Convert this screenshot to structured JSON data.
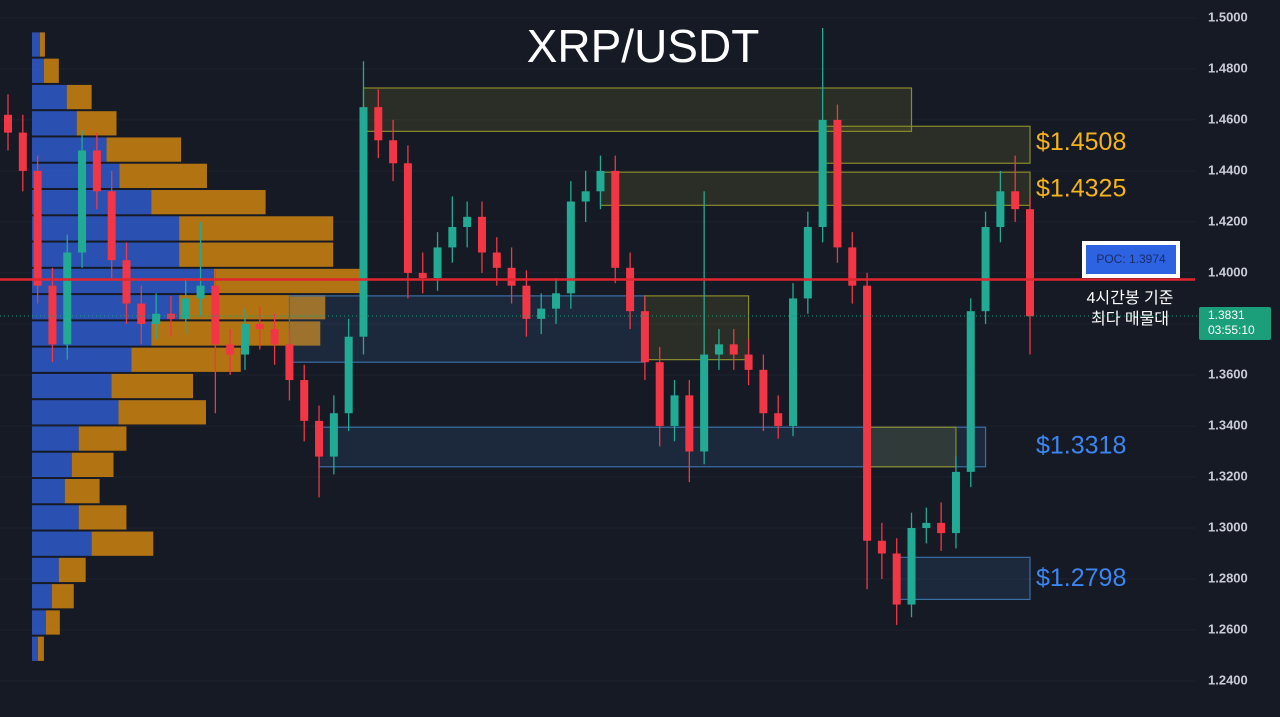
{
  "chart_data": {
    "type": "candlestick",
    "title": "XRP/USDT",
    "ylim": [
      1.2259,
      1.507
    ],
    "yticks": [
      {
        "value": 1.24,
        "label": "1.2400"
      },
      {
        "value": 1.26,
        "label": "1.2600"
      },
      {
        "value": 1.28,
        "label": "1.2800"
      },
      {
        "value": 1.3,
        "label": "1.3000"
      },
      {
        "value": 1.32,
        "label": "1.3200"
      },
      {
        "value": 1.34,
        "label": "1.3400"
      },
      {
        "value": 1.36,
        "label": "1.3600"
      },
      {
        "value": 1.38,
        "label": "1.3800"
      },
      {
        "value": 1.4,
        "label": "1.4000"
      },
      {
        "value": 1.42,
        "label": "1.4200"
      },
      {
        "value": 1.44,
        "label": "1.4400"
      },
      {
        "value": 1.46,
        "label": "1.4600"
      },
      {
        "value": 1.48,
        "label": "1.4800"
      },
      {
        "value": 1.5,
        "label": "1.5000"
      }
    ],
    "grid": true,
    "up_color": "#22ab94",
    "down_color": "#f23645",
    "candles": {
      "open": [
        1.462,
        1.455,
        1.44,
        1.395,
        1.372,
        1.408,
        1.448,
        1.432,
        1.405,
        1.388,
        1.38,
        1.384,
        1.382,
        1.39,
        1.395,
        1.372,
        1.368,
        1.38,
        1.378,
        1.372,
        1.358,
        1.342,
        1.328,
        1.345,
        1.375,
        1.465,
        1.452,
        1.443,
        1.4,
        1.398,
        1.41,
        1.418,
        1.422,
        1.408,
        1.402,
        1.395,
        1.382,
        1.386,
        1.392,
        1.428,
        1.432,
        1.44,
        1.402,
        1.385,
        1.365,
        1.34,
        1.352,
        1.33,
        1.368,
        1.372,
        1.368,
        1.362,
        1.345,
        1.34,
        1.39,
        1.418,
        1.46,
        1.41,
        1.395,
        1.295,
        1.29,
        1.27,
        1.3,
        1.302,
        1.298,
        1.322,
        1.385,
        1.418,
        1.432,
        1.425
      ],
      "high": [
        1.47,
        1.462,
        1.446,
        1.402,
        1.415,
        1.456,
        1.455,
        1.44,
        1.412,
        1.395,
        1.392,
        1.391,
        1.398,
        1.42,
        1.401,
        1.378,
        1.386,
        1.387,
        1.384,
        1.378,
        1.364,
        1.348,
        1.352,
        1.382,
        1.483,
        1.472,
        1.46,
        1.45,
        1.408,
        1.416,
        1.43,
        1.428,
        1.428,
        1.414,
        1.41,
        1.401,
        1.392,
        1.398,
        1.436,
        1.44,
        1.446,
        1.446,
        1.408,
        1.391,
        1.371,
        1.358,
        1.358,
        1.432,
        1.378,
        1.378,
        1.374,
        1.368,
        1.352,
        1.396,
        1.424,
        1.496,
        1.466,
        1.416,
        1.4,
        1.302,
        1.296,
        1.306,
        1.308,
        1.31,
        1.328,
        1.39,
        1.424,
        1.44,
        1.446,
        1.43
      ],
      "low": [
        1.448,
        1.432,
        1.388,
        1.365,
        1.366,
        1.402,
        1.425,
        1.398,
        1.38,
        1.372,
        1.374,
        1.375,
        1.376,
        1.383,
        1.345,
        1.36,
        1.362,
        1.37,
        1.364,
        1.35,
        1.334,
        1.312,
        1.321,
        1.338,
        1.368,
        1.445,
        1.436,
        1.39,
        1.392,
        1.393,
        1.404,
        1.41,
        1.4,
        1.395,
        1.388,
        1.375,
        1.376,
        1.38,
        1.386,
        1.42,
        1.425,
        1.396,
        1.378,
        1.358,
        1.332,
        1.334,
        1.318,
        1.325,
        1.362,
        1.362,
        1.356,
        1.338,
        1.335,
        1.336,
        1.384,
        1.412,
        1.404,
        1.388,
        1.276,
        1.28,
        1.262,
        1.265,
        1.294,
        1.291,
        1.292,
        1.316,
        1.38,
        1.412,
        1.42,
        1.368
      ],
      "close": [
        1.455,
        1.44,
        1.395,
        1.372,
        1.408,
        1.448,
        1.432,
        1.405,
        1.388,
        1.38,
        1.384,
        1.382,
        1.39,
        1.395,
        1.372,
        1.368,
        1.38,
        1.378,
        1.372,
        1.358,
        1.342,
        1.328,
        1.345,
        1.375,
        1.465,
        1.452,
        1.443,
        1.4,
        1.398,
        1.41,
        1.418,
        1.422,
        1.408,
        1.402,
        1.395,
        1.382,
        1.386,
        1.392,
        1.428,
        1.432,
        1.44,
        1.402,
        1.385,
        1.365,
        1.34,
        1.352,
        1.33,
        1.368,
        1.372,
        1.368,
        1.362,
        1.345,
        1.34,
        1.39,
        1.418,
        1.46,
        1.41,
        1.395,
        1.295,
        1.29,
        1.27,
        1.3,
        1.302,
        1.298,
        1.322,
        1.385,
        1.418,
        1.432,
        1.425,
        1.383
      ]
    },
    "volume_profile": {
      "bins": [
        1.2475,
        1.2578,
        1.2681,
        1.2784,
        1.2887,
        1.299,
        1.3093,
        1.3196,
        1.3299,
        1.3402,
        1.3505,
        1.3608,
        1.3711,
        1.3814,
        1.3917,
        1.402,
        1.4123,
        1.4226,
        1.4329,
        1.4432,
        1.4535,
        1.4638,
        1.4741,
        1.4844,
        1.4947
      ],
      "xlim": [
        0,
        340
      ],
      "buy": [
        6,
        14,
        20,
        27,
        60,
        47,
        33,
        40,
        47,
        87,
        80,
        100,
        120,
        148,
        183,
        148,
        148,
        120,
        88,
        75,
        45,
        35,
        12,
        8
      ],
      "sell": [
        6,
        14,
        22,
        27,
        62,
        48,
        35,
        42,
        48,
        88,
        82,
        110,
        170,
        147,
        153,
        155,
        155,
        115,
        88,
        75,
        40,
        25,
        15,
        5
      ],
      "buy_color": "#2f5fd6",
      "sell_color": "#d98a0e"
    },
    "zones": [
      {
        "low": 1.4555,
        "high": 1.4725,
        "from": 24,
        "to": 61,
        "color": "#8a8a2a"
      },
      {
        "low": 1.443,
        "high": 1.4575,
        "from": 55,
        "to": 69,
        "color": "#8a8a2a"
      },
      {
        "low": 1.4265,
        "high": 1.4395,
        "from": 40,
        "to": 69,
        "color": "#8a8a2a"
      },
      {
        "low": 1.365,
        "high": 1.391,
        "from": 19,
        "to": 43,
        "color": "#3a6ea5"
      },
      {
        "low": 1.366,
        "high": 1.391,
        "from": 43,
        "to": 50,
        "color": "#8a8a2a"
      },
      {
        "low": 1.324,
        "high": 1.3395,
        "from": 21,
        "to": 66,
        "color": "#3a6ea5"
      },
      {
        "low": 1.324,
        "high": 1.3395,
        "from": 58,
        "to": 64,
        "color": "#8a8a2a"
      },
      {
        "low": 1.272,
        "high": 1.2885,
        "from": 60,
        "to": 69,
        "color": "#3a6ea5"
      }
    ],
    "levels": [
      {
        "label": "$1.4508",
        "value": 1.4508,
        "color": "#f5b31c"
      },
      {
        "label": "$1.4325",
        "value": 1.4325,
        "color": "#f5b31c"
      },
      {
        "label": "$1.3318",
        "value": 1.3318,
        "color": "#3d86f0"
      },
      {
        "label": "$1.2798",
        "value": 1.2798,
        "color": "#3d86f0"
      }
    ],
    "poc": {
      "label": "POC: 1.3974",
      "value": 1.3974,
      "color": "#e0252f"
    },
    "annotation": [
      "4시간봉 기준",
      "최다 매물대"
    ],
    "current_price": {
      "label": "1.3831",
      "value": 1.3831,
      "countdown": "03:55:10",
      "color": "#1b9e7a"
    }
  }
}
